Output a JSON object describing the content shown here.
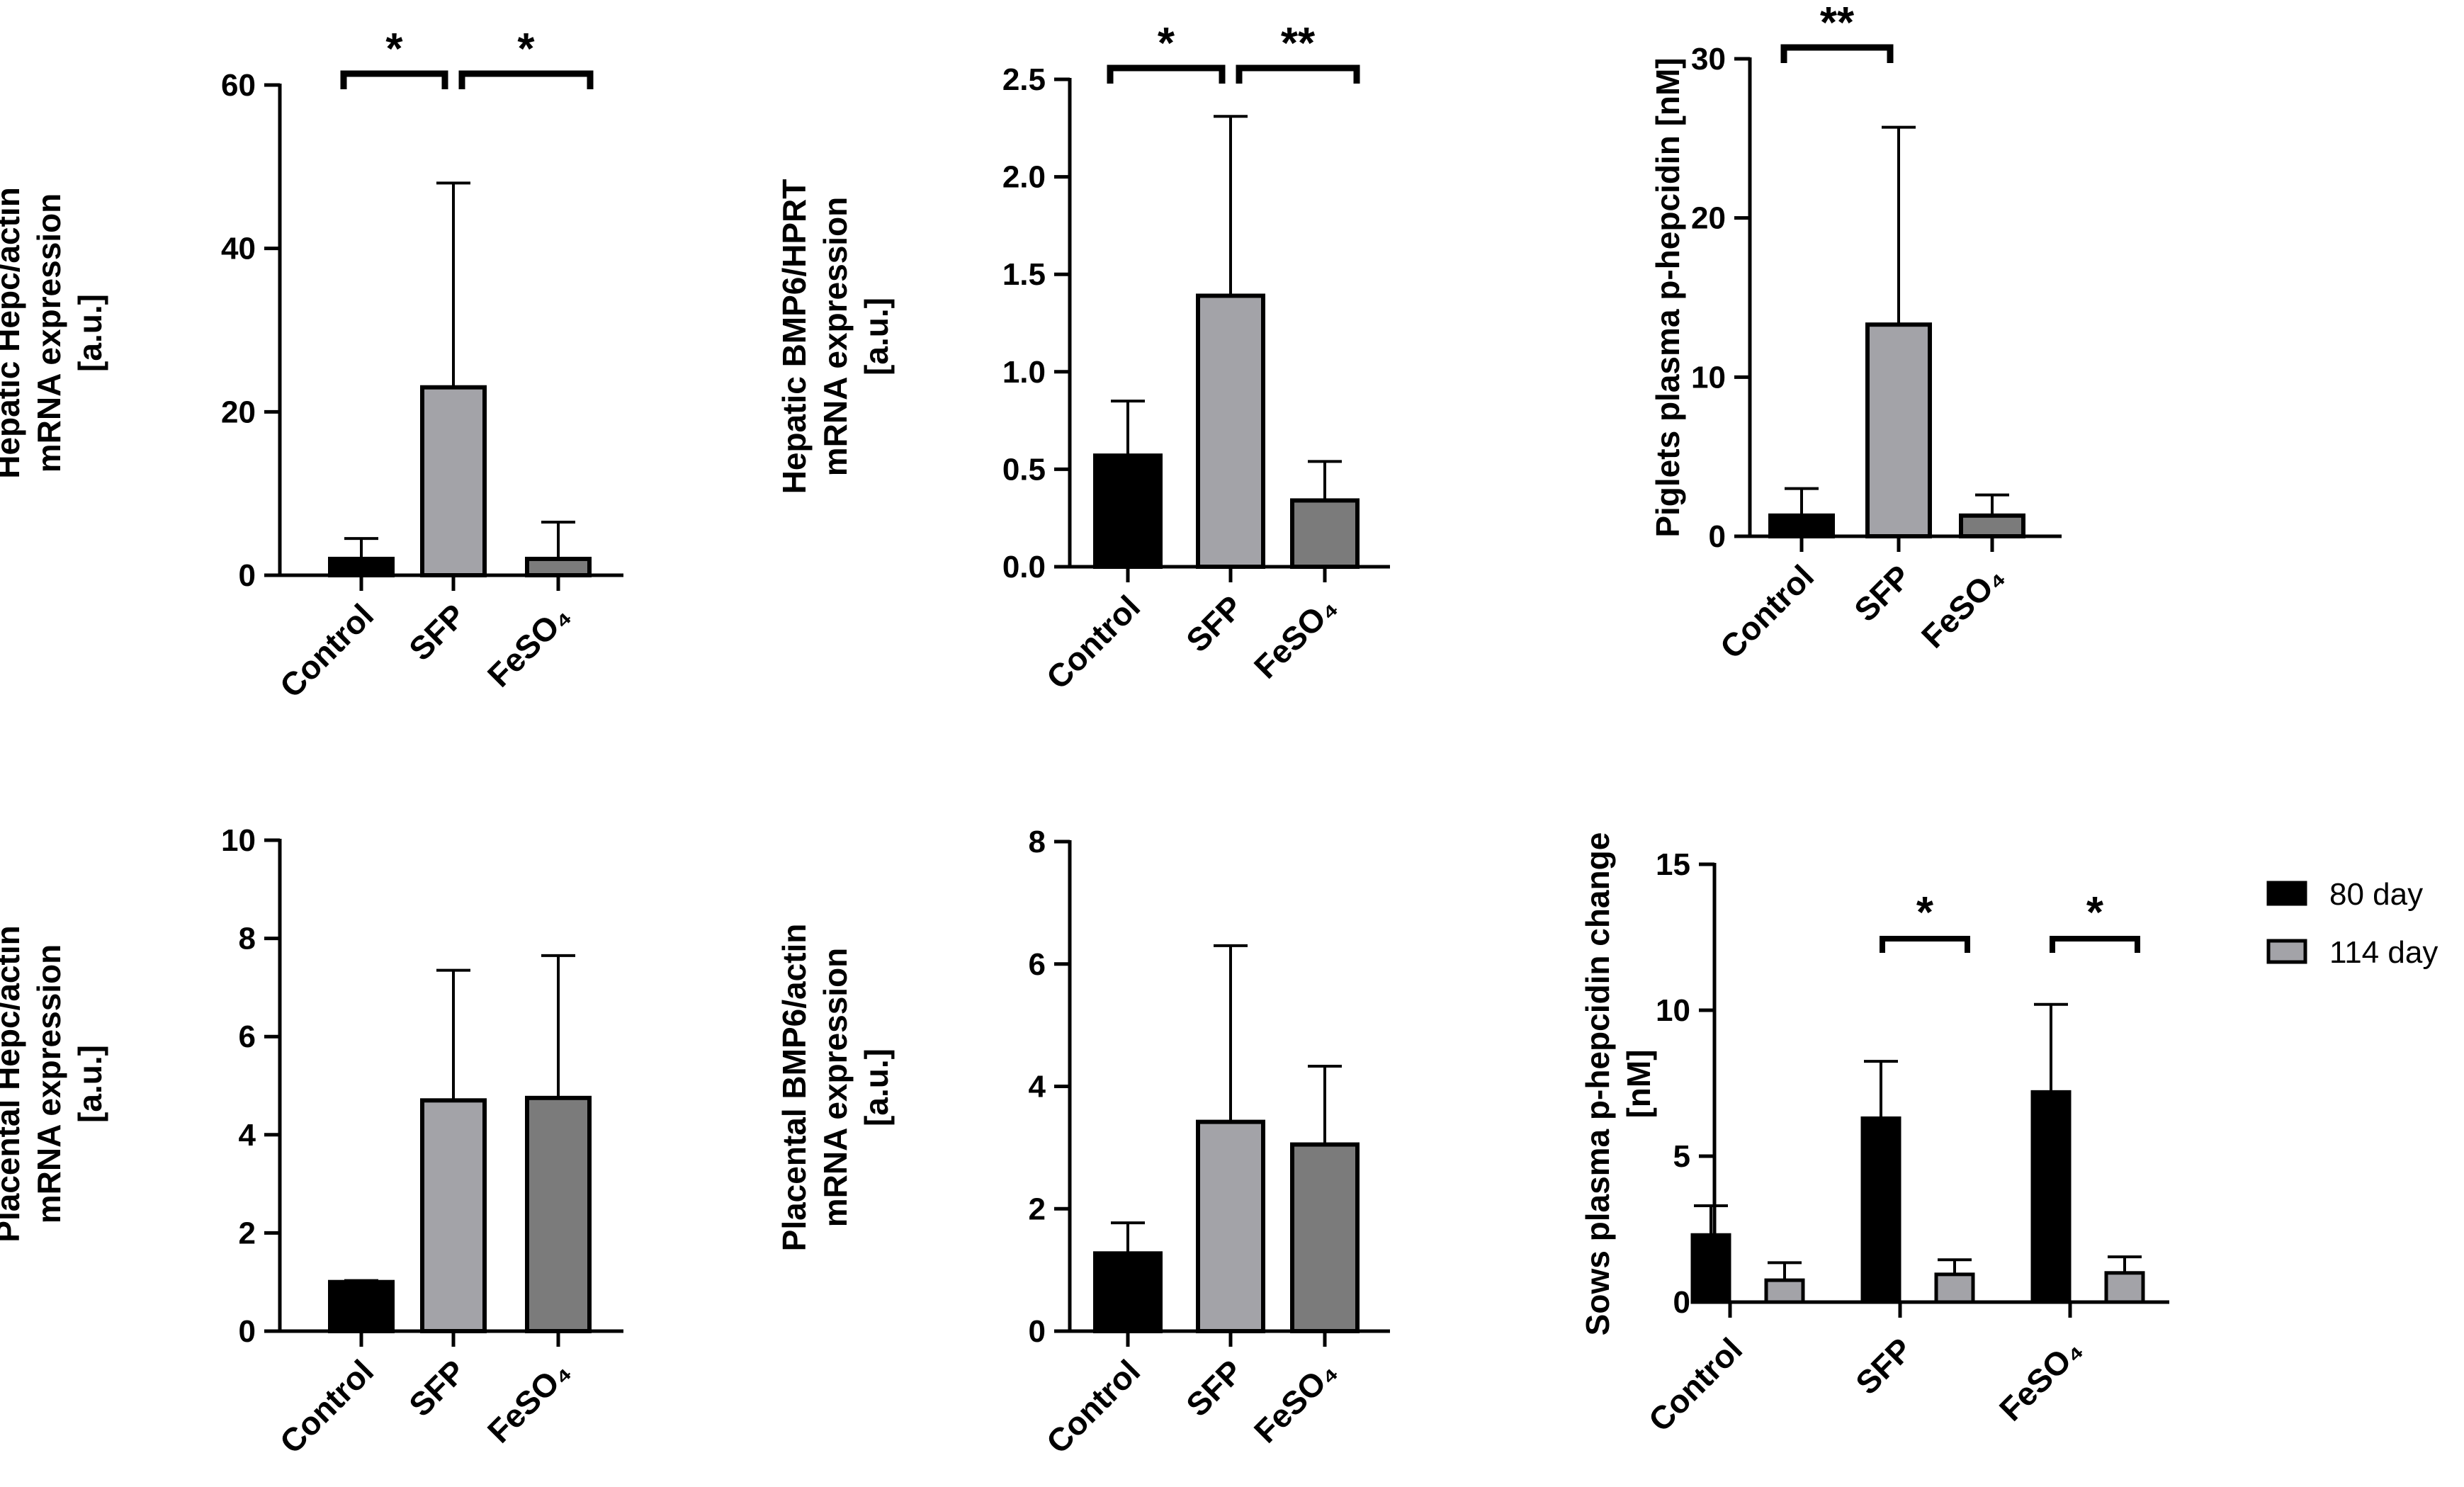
{
  "colors": {
    "control": "#000000",
    "sfp": "#a3a3a8",
    "feso4": "#7b7b7b",
    "day80": "#000000",
    "day114": "#a3a3a8",
    "axis": "#000000"
  },
  "chart_data": [
    {
      "id": "hepatic-hepc",
      "type": "bar",
      "ylabel_lines": [
        "Hepatic Hepc/actin",
        "mRNA expression",
        "[a.u.]"
      ],
      "ylim": [
        0,
        60
      ],
      "yticks": [
        0,
        20,
        40,
        60
      ],
      "categories": [
        "Control",
        "SFP",
        "FeSO₄"
      ],
      "values": [
        2,
        23,
        2
      ],
      "errors": [
        2.5,
        25,
        4.5
      ],
      "significance": [
        {
          "from": 0,
          "to": 1,
          "label": "*"
        },
        {
          "from": 1,
          "to": 2,
          "label": "*"
        }
      ]
    },
    {
      "id": "hepatic-bmp6",
      "type": "bar",
      "ylabel_lines": [
        "Hepatic BMP6/HPRT",
        "mRNA expression",
        "[a.u.]"
      ],
      "ylim": [
        0,
        2.5
      ],
      "yticks": [
        0.0,
        0.5,
        1.0,
        1.5,
        2.0,
        2.5
      ],
      "ytick_labels": [
        "0.0",
        "0.5",
        "1.0",
        "1.5",
        "2.0",
        "2.5"
      ],
      "categories": [
        "Control",
        "SFP",
        "FeSO₄"
      ],
      "values": [
        0.57,
        1.39,
        0.34
      ],
      "errors": [
        0.28,
        0.92,
        0.2
      ],
      "significance": [
        {
          "from": 0,
          "to": 1,
          "label": "*"
        },
        {
          "from": 1,
          "to": 2,
          "label": "**"
        }
      ]
    },
    {
      "id": "piglets-hepcidin",
      "type": "bar",
      "ylabel_lines": [
        "Piglets plasma p-hepcidin [nM]"
      ],
      "ylim": [
        0,
        30
      ],
      "yticks": [
        0,
        10,
        20,
        30
      ],
      "categories": [
        "Control",
        "SFP",
        "FeSO₄"
      ],
      "values": [
        1.3,
        13.3,
        1.3
      ],
      "errors": [
        1.7,
        12.4,
        1.3
      ],
      "significance": [
        {
          "from": 0,
          "to": 1,
          "label": "**"
        }
      ]
    },
    {
      "id": "placental-hepc",
      "type": "bar",
      "ylabel_lines": [
        "Placental Hepc/actin",
        "mRNA expression",
        "[a.u.]"
      ],
      "ylim": [
        0,
        10
      ],
      "yticks": [
        0,
        2,
        4,
        6,
        8,
        10
      ],
      "categories": [
        "Control",
        "SFP",
        "FeSO₄"
      ],
      "values": [
        1.0,
        4.7,
        4.75
      ],
      "errors": [
        0.03,
        2.65,
        2.9
      ],
      "significance": []
    },
    {
      "id": "placental-bmp6",
      "type": "bar",
      "ylabel_lines": [
        "Placental BMP6/actin",
        "mRNA expression",
        "[a.u.]"
      ],
      "ylim": [
        0,
        8
      ],
      "yticks": [
        0,
        2,
        4,
        6,
        8
      ],
      "categories": [
        "Control",
        "SFP",
        "FeSO₄"
      ],
      "values": [
        1.27,
        3.42,
        3.05
      ],
      "errors": [
        0.5,
        2.88,
        1.28
      ],
      "significance": []
    },
    {
      "id": "sows-hepcidin-change",
      "type": "grouped-bar",
      "ylabel_lines": [
        "Sows plasma p-hepcidin change",
        "[nM]"
      ],
      "ylim": [
        0,
        15
      ],
      "yticks": [
        0,
        5,
        10,
        15
      ],
      "categories": [
        "Control",
        "SFP",
        "FeSO₄"
      ],
      "series": [
        {
          "name": "80 day",
          "values": [
            2.3,
            6.3,
            7.2
          ],
          "errors": [
            1.0,
            1.95,
            3.0
          ]
        },
        {
          "name": "114 day",
          "values": [
            0.75,
            0.95,
            1.0
          ],
          "errors": [
            0.6,
            0.5,
            0.55
          ]
        }
      ],
      "significance": [
        {
          "category": 1,
          "label": "*"
        },
        {
          "category": 2,
          "label": "*"
        }
      ],
      "legend_position": "top-right"
    }
  ]
}
